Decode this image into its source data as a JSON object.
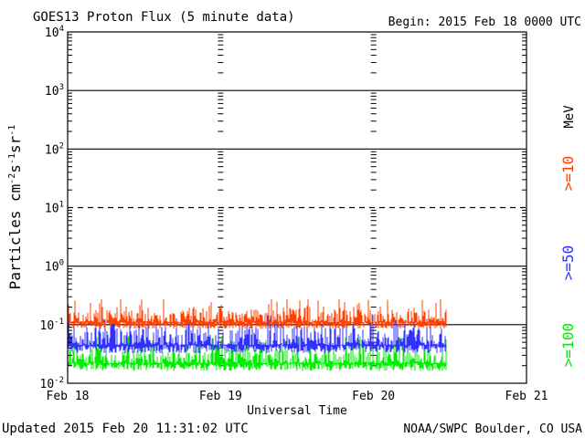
{
  "header": {
    "title": "GOES13 Proton Flux (5 minute data)",
    "begin": "Begin: 2015 Feb 18 0000 UTC"
  },
  "footer": {
    "updated": "Updated 2015 Feb 20 11:31:02 UTC",
    "credit": "NOAA/SWPC Boulder, CO USA"
  },
  "chart_data": {
    "type": "line",
    "title": "GOES13 Proton Flux (5 minute data)",
    "xlabel": "Universal Time",
    "ylabel": "Particles cm⁻²s⁻¹sr⁻¹",
    "yscale": "log",
    "ylim": [
      0.01,
      10000
    ],
    "y_ticks": [
      {
        "base": "10",
        "exp": "-2",
        "value": 0.01
      },
      {
        "base": "10",
        "exp": "-1",
        "value": 0.1
      },
      {
        "base": "10",
        "exp": "0",
        "value": 1
      },
      {
        "base": "10",
        "exp": "1",
        "value": 10
      },
      {
        "base": "10",
        "exp": "2",
        "value": 100
      },
      {
        "base": "10",
        "exp": "3",
        "value": 1000
      },
      {
        "base": "10",
        "exp": "4",
        "value": 10000
      }
    ],
    "x_range_days": [
      "2015-02-18",
      "2015-02-21"
    ],
    "x_ticks": [
      "Feb 18",
      "Feb 19",
      "Feb 20",
      "Feb 21"
    ],
    "data_end": "2015-02-20 11:30",
    "threshold_lines": [
      {
        "value": 10,
        "style": "dashed"
      },
      {
        "value": 100,
        "style": "solid"
      },
      {
        "value": 1000,
        "style": "solid"
      }
    ],
    "grid": true,
    "legend_unit": "MeV",
    "legend_placement": "right",
    "series": [
      {
        "name": ">=10",
        "color": "#ff4000",
        "baseline": 0.11,
        "min": 0.08,
        "max": 0.28
      },
      {
        "name": ">=50",
        "color": "#3030ff",
        "baseline": 0.045,
        "min": 0.03,
        "max": 0.15
      },
      {
        "name": ">=100",
        "color": "#00ee00",
        "baseline": 0.022,
        "min": 0.015,
        "max": 0.065
      }
    ]
  }
}
